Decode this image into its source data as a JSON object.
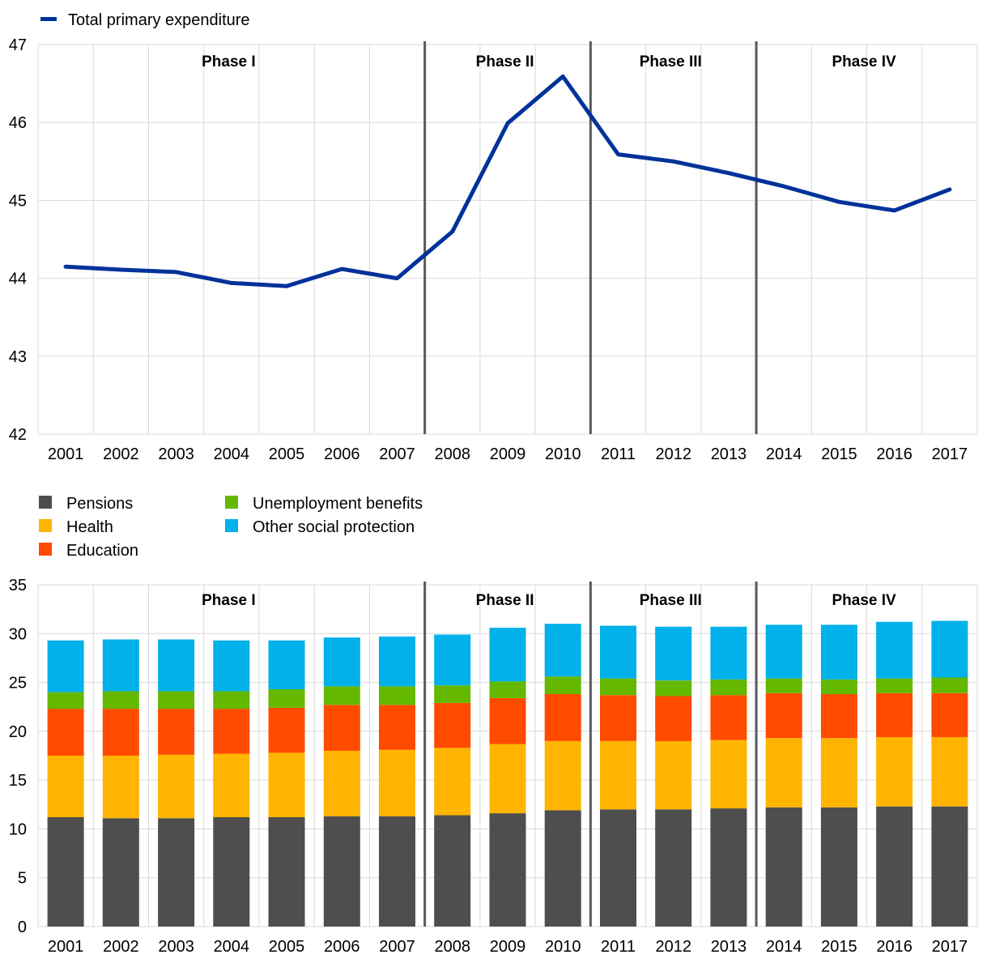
{
  "chart_data": [
    {
      "type": "line",
      "x": [
        2001,
        2002,
        2003,
        2004,
        2005,
        2006,
        2007,
        2008,
        2009,
        2010,
        2011,
        2012,
        2013,
        2014,
        2015,
        2016,
        2017
      ],
      "series": [
        {
          "name": "Total primary expenditure",
          "values": [
            44.15,
            44.11,
            44.08,
            43.94,
            43.9,
            44.12,
            44.0,
            44.6,
            45.99,
            46.59,
            45.59,
            45.5,
            45.35,
            45.18,
            44.98,
            44.87,
            45.14
          ]
        }
      ],
      "ylim": [
        42,
        47
      ],
      "yticks": [
        42,
        43,
        44,
        45,
        46,
        47
      ],
      "grid": true,
      "legend_position": "top-left",
      "colors": {
        "line": "#003299",
        "grid": "#d9d9d9",
        "divider": "#595959"
      },
      "phases": [
        {
          "label": "Phase I",
          "end_after": 2007
        },
        {
          "label": "Phase II",
          "end_after": 2010
        },
        {
          "label": "Phase III",
          "end_after": 2013
        },
        {
          "label": "Phase IV",
          "end_after": 2017
        }
      ]
    },
    {
      "type": "bar",
      "stacked": true,
      "categories": [
        2001,
        2002,
        2003,
        2004,
        2005,
        2006,
        2007,
        2008,
        2009,
        2010,
        2011,
        2012,
        2013,
        2014,
        2015,
        2016,
        2017
      ],
      "series": [
        {
          "name": "Pensions",
          "color": "#4e4e4e",
          "values": [
            11.2,
            11.1,
            11.1,
            11.2,
            11.2,
            11.3,
            11.3,
            11.4,
            11.6,
            11.9,
            12.0,
            12.0,
            12.1,
            12.2,
            12.2,
            12.3,
            12.3
          ]
        },
        {
          "name": "Health",
          "color": "#ffb400",
          "values": [
            6.3,
            6.4,
            6.5,
            6.5,
            6.6,
            6.7,
            6.8,
            6.9,
            7.1,
            7.1,
            7.0,
            7.0,
            7.0,
            7.1,
            7.1,
            7.1,
            7.1
          ]
        },
        {
          "name": "Education",
          "color": "#ff4b00",
          "values": [
            4.8,
            4.8,
            4.7,
            4.6,
            4.6,
            4.7,
            4.6,
            4.6,
            4.7,
            4.8,
            4.7,
            4.6,
            4.6,
            4.6,
            4.5,
            4.5,
            4.5
          ]
        },
        {
          "name": "Unemployment benefits",
          "color": "#65b800",
          "values": [
            1.7,
            1.8,
            1.8,
            1.8,
            1.9,
            1.9,
            1.9,
            1.8,
            1.7,
            1.8,
            1.7,
            1.6,
            1.6,
            1.5,
            1.5,
            1.5,
            1.6
          ]
        },
        {
          "name": "Other social protection",
          "color": "#00b1ea",
          "values": [
            5.3,
            5.3,
            5.3,
            5.2,
            5.0,
            5.0,
            5.1,
            5.2,
            5.5,
            5.4,
            5.4,
            5.5,
            5.4,
            5.5,
            5.6,
            5.8,
            5.8
          ]
        }
      ],
      "ylim": [
        0,
        35
      ],
      "yticks": [
        0,
        5,
        10,
        15,
        20,
        25,
        30,
        35
      ],
      "grid": true,
      "legend_position": "top-left",
      "colors": {
        "grid": "#d9d9d9",
        "divider": "#595959"
      },
      "phases": [
        {
          "label": "Phase I",
          "end_after": 2007
        },
        {
          "label": "Phase II",
          "end_after": 2010
        },
        {
          "label": "Phase III",
          "end_after": 2013
        },
        {
          "label": "Phase IV",
          "end_after": 2017
        }
      ]
    }
  ]
}
